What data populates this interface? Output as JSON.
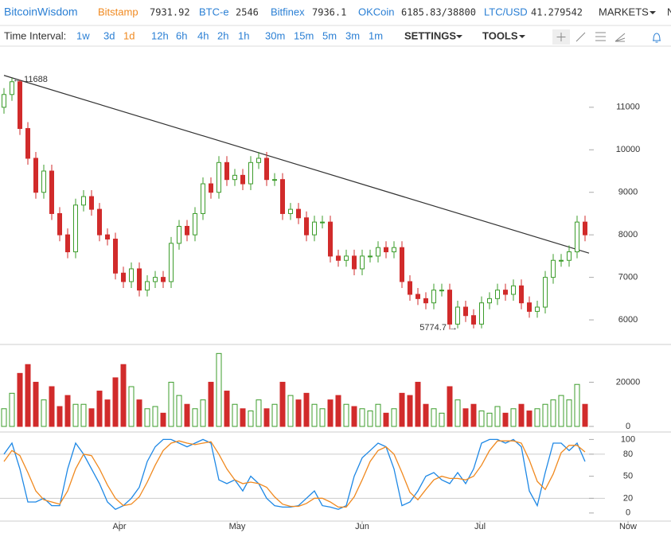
{
  "header": {
    "logo": "BitcoinWisdom",
    "tickers": [
      {
        "name": "Bitstamp",
        "price": 7931.92
      },
      {
        "name": "BTC-e",
        "price": 2546
      },
      {
        "name": "Bitfinex",
        "price": 7936.1
      },
      {
        "name": "OKCoin",
        "price": "6185.83/38800"
      },
      {
        "name": "LTC/USD",
        "price": 41.279542
      }
    ],
    "markets": "MARKETS",
    "cut": "N"
  },
  "toolbar": {
    "label": "Time Interval:",
    "intervals": [
      "1w",
      "3d",
      "1d",
      "12h",
      "6h",
      "4h",
      "2h",
      "1h",
      "30m",
      "15m",
      "5m",
      "3m",
      "1m"
    ],
    "settings": "SETTINGS",
    "tools": "TOOLS"
  },
  "chart_data": {
    "type": "candlestick",
    "open": [
      11000,
      11300,
      11600,
      10500,
      9800,
      9000,
      9500,
      8500,
      8000,
      7600,
      8700,
      8900,
      8600,
      8000,
      7900,
      7100,
      6900,
      7200,
      6700,
      6900,
      7000,
      6900,
      7800,
      8200,
      8000,
      8500,
      9200,
      9000,
      9700,
      9300,
      9400,
      9200,
      9700,
      9800,
      9300,
      9300,
      8500,
      8600,
      8400,
      8000,
      8300,
      8300,
      7500,
      7400,
      7500,
      7200,
      7500,
      7500,
      7700,
      7600,
      7700,
      6900,
      6600,
      6500,
      6400,
      6700,
      6700,
      5900,
      6300,
      6100,
      5900,
      6400,
      6500,
      6700,
      6600,
      6800,
      6400,
      6200,
      6300,
      7000,
      7400,
      7400,
      7600,
      8300
    ],
    "high": [
      11450,
      11688,
      11650,
      10650,
      9950,
      9650,
      9650,
      8650,
      8150,
      8850,
      9050,
      9050,
      8750,
      8150,
      8050,
      7250,
      7350,
      7350,
      7050,
      7150,
      7150,
      7950,
      8350,
      8350,
      8650,
      9350,
      9350,
      9850,
      9850,
      9550,
      9550,
      9850,
      9950,
      9950,
      9450,
      9450,
      8750,
      8750,
      8550,
      8450,
      8450,
      8450,
      7650,
      7650,
      7650,
      7650,
      7650,
      7850,
      7850,
      7850,
      7850,
      7050,
      6750,
      6650,
      6850,
      6850,
      6850,
      6450,
      6450,
      6250,
      6550,
      6650,
      6850,
      6850,
      6950,
      6950,
      6550,
      6450,
      7150,
      7550,
      7550,
      7750,
      8450,
      8450
    ],
    "low": [
      10850,
      11150,
      10350,
      9650,
      8850,
      8850,
      8350,
      7850,
      7450,
      7450,
      8550,
      8450,
      7850,
      7750,
      6950,
      6750,
      6750,
      6550,
      6550,
      6750,
      6750,
      6750,
      7650,
      7850,
      7850,
      8350,
      8850,
      8850,
      9150,
      9150,
      9050,
      9050,
      9550,
      9150,
      9150,
      8350,
      8350,
      8250,
      7850,
      7850,
      8150,
      7350,
      7250,
      7250,
      7050,
      7050,
      7350,
      7350,
      7450,
      7450,
      6750,
      6450,
      6350,
      6250,
      6250,
      6550,
      5774.7,
      5800,
      5950,
      5800,
      5800,
      6250,
      6350,
      6450,
      6450,
      6250,
      6050,
      6050,
      6150,
      6850,
      7250,
      7250,
      7450,
      7850
    ],
    "close": [
      11300,
      11600,
      10500,
      9800,
      9000,
      9500,
      8500,
      8000,
      7600,
      8700,
      8900,
      8600,
      8000,
      7900,
      7100,
      6900,
      7200,
      6700,
      6900,
      7000,
      6900,
      7800,
      8200,
      8000,
      8500,
      9200,
      9000,
      9700,
      9300,
      9400,
      9200,
      9700,
      9800,
      9300,
      9300,
      8500,
      8600,
      8400,
      8000,
      8300,
      8300,
      7500,
      7400,
      7500,
      7200,
      7500,
      7500,
      7700,
      7600,
      7700,
      6900,
      6600,
      6500,
      6400,
      6700,
      6700,
      5900,
      6300,
      6100,
      5900,
      6400,
      6500,
      6700,
      6600,
      6800,
      6400,
      6200,
      6300,
      7000,
      7400,
      7400,
      7600,
      8300,
      8000
    ],
    "up_color": "#3c9c2b",
    "down_color": "#d12b2b",
    "ylim": [
      5440,
      12400
    ],
    "yticks": [
      6000,
      7000,
      8000,
      9000,
      10000,
      11000
    ],
    "xlim": [
      -0.5,
      83.8
    ],
    "xticks": [
      {
        "value": 14.5,
        "label": "Apr"
      },
      {
        "value": 29.3,
        "label": "May"
      },
      {
        "value": 45,
        "label": "Jun"
      },
      {
        "value": 59.8,
        "label": "Jul"
      },
      {
        "value": 78.4,
        "label": "Now"
      }
    ],
    "trendline": {
      "x": [
        0,
        73.5
      ],
      "y": [
        11750,
        7570
      ]
    },
    "annotations": [
      {
        "text": "← 11688"
      },
      {
        "text": "5774.7 →"
      }
    ],
    "volume": {
      "values": [
        8000,
        15000,
        24000,
        28000,
        20000,
        12000,
        18000,
        9000,
        14000,
        10000,
        10000,
        8000,
        16000,
        12000,
        22000,
        28000,
        18000,
        12000,
        8000,
        9000,
        6000,
        20000,
        14000,
        10000,
        8000,
        12000,
        20000,
        33000,
        16000,
        10000,
        8000,
        7000,
        12000,
        8000,
        10000,
        20000,
        14000,
        12000,
        15000,
        10000,
        8000,
        12000,
        14000,
        10000,
        9000,
        8000,
        7000,
        10000,
        6000,
        8000,
        15000,
        14000,
        20000,
        10000,
        8000,
        6000,
        18000,
        12000,
        8000,
        10000,
        7000,
        6000,
        9000,
        6000,
        8000,
        10000,
        7000,
        8000,
        10000,
        12000,
        14000,
        12000,
        19000,
        10000
      ],
      "ylim": [
        0,
        36000
      ],
      "yticks": [
        0,
        20000
      ]
    },
    "stoch": {
      "ylim": [
        -11,
        108
      ],
      "yticks": [
        0,
        20,
        50,
        80,
        100
      ],
      "grid": [
        20,
        80
      ],
      "series": [
        {
          "color": "#1e88e5",
          "values": [
            80,
            95,
            60,
            15,
            15,
            20,
            10,
            10,
            60,
            95,
            80,
            60,
            40,
            15,
            5,
            10,
            20,
            35,
            70,
            90,
            100,
            100,
            95,
            90,
            95,
            100,
            95,
            45,
            40,
            45,
            30,
            50,
            40,
            20,
            10,
            8,
            8,
            10,
            20,
            30,
            10,
            8,
            5,
            10,
            50,
            75,
            85,
            95,
            90,
            60,
            10,
            15,
            30,
            50,
            55,
            45,
            40,
            55,
            40,
            60,
            95,
            100,
            100,
            95,
            100,
            90,
            30,
            10,
            55,
            95,
            95,
            85,
            95,
            70
          ]
        },
        {
          "color": "#f0891f",
          "values": [
            70,
            85,
            78,
            55,
            30,
            18,
            15,
            12,
            30,
            60,
            80,
            78,
            60,
            38,
            20,
            10,
            12,
            22,
            42,
            65,
            85,
            95,
            98,
            95,
            93,
            95,
            97,
            80,
            60,
            45,
            40,
            42,
            40,
            35,
            22,
            12,
            9,
            9,
            13,
            20,
            20,
            15,
            8,
            8,
            22,
            45,
            70,
            85,
            90,
            80,
            55,
            28,
            18,
            32,
            45,
            50,
            47,
            47,
            45,
            50,
            65,
            85,
            98,
            98,
            98,
            95,
            72,
            43,
            32,
            53,
            82,
            92,
            92,
            83
          ]
        }
      ]
    }
  }
}
